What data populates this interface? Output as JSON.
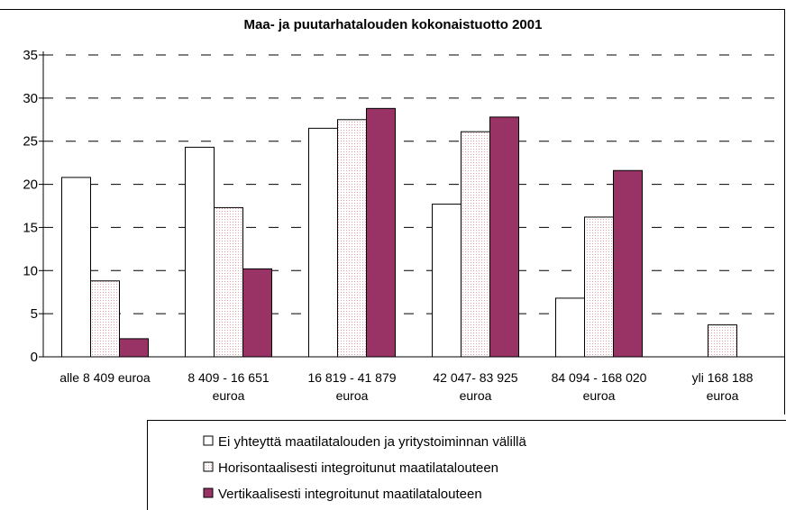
{
  "chart_data": {
    "type": "bar",
    "title": "Maa- ja puutarhatalouden kokonaistuotto 2001",
    "categories": [
      [
        "alle 8 409 euroa"
      ],
      [
        "8 409 - 16 651",
        "euroa"
      ],
      [
        "16 819 - 41 879",
        "euroa"
      ],
      [
        "42 047- 83 925",
        "euroa"
      ],
      [
        "84 094 - 168 020",
        "euroa"
      ],
      [
        "yli 168 188",
        "euroa"
      ]
    ],
    "series": [
      {
        "name": "Ei yhteyttä maatilatalouden ja yritystoiminnan välillä",
        "color": "#ffffff",
        "values": [
          20.8,
          24.3,
          26.5,
          17.7,
          6.8,
          0
        ]
      },
      {
        "name": "Horisontaalisesti integroitunut maatilatalouteen",
        "color": "#e8a0a8",
        "values": [
          8.8,
          17.3,
          27.5,
          26.1,
          16.2,
          3.7
        ]
      },
      {
        "name": "Vertikaalisesti integroitunut maatilatalouteen",
        "color": "#993366",
        "values": [
          2.1,
          10.2,
          28.8,
          27.8,
          21.6,
          0
        ]
      }
    ],
    "ylim": [
      0,
      35
    ],
    "yticks": [
      0,
      5,
      10,
      15,
      20,
      25,
      30,
      35
    ],
    "grid": true,
    "legend": "bottom"
  }
}
